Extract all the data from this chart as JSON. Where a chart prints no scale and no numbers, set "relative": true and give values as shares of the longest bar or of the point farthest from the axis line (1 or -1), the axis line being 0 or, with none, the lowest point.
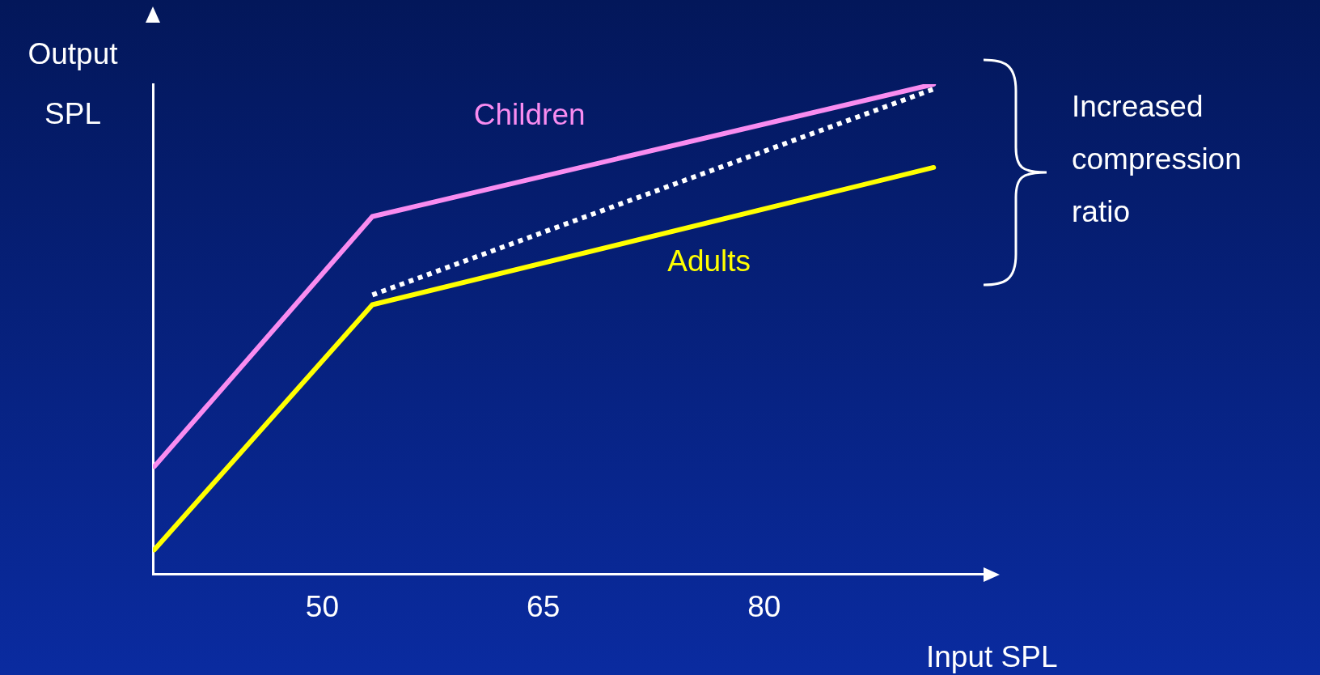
{
  "chart_data": {
    "type": "line",
    "xlabel": "Input SPL",
    "ylabel": "Output SPL",
    "relative": true,
    "xlim": [
      38.5,
      95
    ],
    "xticks": [
      50,
      65,
      80
    ],
    "grid": false,
    "legend": false,
    "marker": "none",
    "line_style": "solid",
    "annotations": [
      "Increased compression ratio"
    ],
    "series": [
      {
        "name": "Children",
        "color": "#f98cf0",
        "x": [
          38.6,
          53.4,
          91.5
        ],
        "values": [
          0.22,
          0.73,
          1
        ]
      },
      {
        "name": "Adults",
        "color": "#ffff00",
        "x": [
          38.6,
          53.4,
          91.5
        ],
        "values": [
          0.05,
          0.55,
          0.83
        ]
      },
      {
        "color": "#ffffff",
        "line_style": "dotted",
        "x": [
          53.4,
          91.5
        ],
        "values": [
          0.57,
          0.99
        ]
      }
    ]
  }
}
